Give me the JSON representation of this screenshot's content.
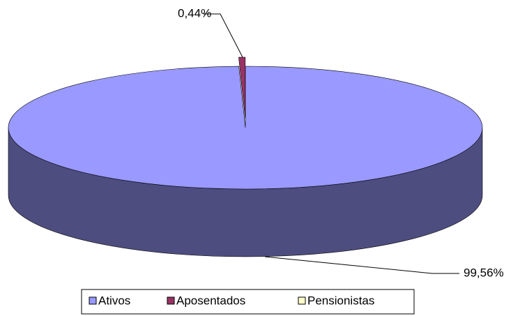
{
  "chart_data": {
    "type": "pie",
    "categories": [
      "Ativos",
      "Aposentados",
      "Pensionistas"
    ],
    "values": [
      99.56,
      0.44,
      0
    ],
    "value_labels": [
      "99,56%",
      "0,44%",
      null
    ],
    "colors": [
      "#9999ff",
      "#993366",
      "#ffffcc"
    ]
  }
}
